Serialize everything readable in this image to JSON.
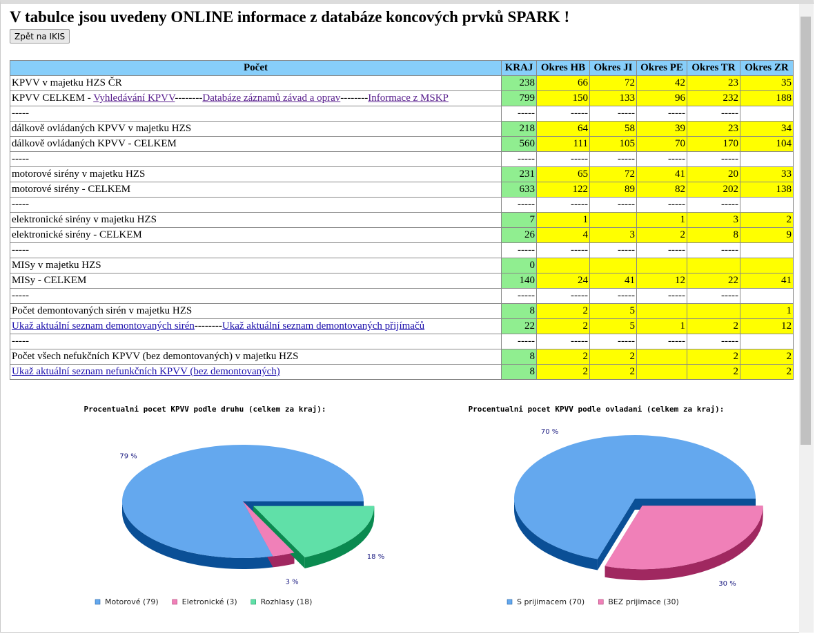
{
  "header": {
    "title": "V tabulce jsou uvedeny ONLINE informace z databáze koncových prvků SPARK !",
    "button": "Zpět na IKIS"
  },
  "table": {
    "columns": [
      "Počet",
      "KRAJ",
      "Okres HB",
      "Okres JI",
      "Okres PE",
      "Okres TR",
      "Okres ZR"
    ],
    "rows": [
      {
        "label": [
          {
            "text": "KPVV v majetku HZS ČR"
          }
        ],
        "cells": [
          238,
          66,
          72,
          42,
          23,
          35
        ]
      },
      {
        "label": [
          {
            "text": "KPVV CELKEM - "
          },
          {
            "text": "Vyhledávání KPVV",
            "link": true,
            "visited": true
          },
          {
            "text": "--------"
          },
          {
            "text": "Databáze záznamů závad a oprav",
            "link": true,
            "visited": true
          },
          {
            "text": "--------"
          },
          {
            "text": "Informace z MSKP",
            "link": true,
            "visited": true
          }
        ],
        "cells": [
          799,
          150,
          133,
          96,
          232,
          188
        ]
      },
      {
        "label": [
          {
            "text": "-----"
          }
        ],
        "cells": [
          "-----",
          "-----",
          "-----",
          "-----",
          "-----",
          null
        ]
      },
      {
        "label": [
          {
            "text": "dálkově ovládaných KPVV v majetku HZS"
          }
        ],
        "cells": [
          218,
          64,
          58,
          39,
          23,
          34
        ]
      },
      {
        "label": [
          {
            "text": "dálkově ovládaných KPVV - CELKEM"
          }
        ],
        "cells": [
          560,
          111,
          105,
          70,
          170,
          104
        ]
      },
      {
        "label": [
          {
            "text": "-----"
          }
        ],
        "cells": [
          "-----",
          "-----",
          "-----",
          "-----",
          "-----",
          null
        ]
      },
      {
        "label": [
          {
            "text": "motorové sirény v majetku HZS"
          }
        ],
        "cells": [
          231,
          65,
          72,
          41,
          20,
          33
        ]
      },
      {
        "label": [
          {
            "text": "motorové sirény - CELKEM"
          }
        ],
        "cells": [
          633,
          122,
          89,
          82,
          202,
          138
        ]
      },
      {
        "label": [
          {
            "text": "-----"
          }
        ],
        "cells": [
          "-----",
          "-----",
          "-----",
          "-----",
          "-----",
          null
        ]
      },
      {
        "label": [
          {
            "text": "elektronické sirény v majetku HZS"
          }
        ],
        "cells": [
          7,
          1,
          null,
          1,
          3,
          2
        ]
      },
      {
        "label": [
          {
            "text": "elektronické sirény - CELKEM"
          }
        ],
        "cells": [
          26,
          4,
          3,
          2,
          8,
          9
        ]
      },
      {
        "label": [
          {
            "text": "-----"
          }
        ],
        "cells": [
          "-----",
          "-----",
          "-----",
          "-----",
          "-----",
          null
        ]
      },
      {
        "label": [
          {
            "text": "MISy v majetku HZS"
          }
        ],
        "cells": [
          0,
          null,
          null,
          null,
          null,
          null
        ]
      },
      {
        "label": [
          {
            "text": "MISy - CELKEM"
          }
        ],
        "cells": [
          140,
          24,
          41,
          12,
          22,
          41
        ]
      },
      {
        "label": [
          {
            "text": "-----"
          }
        ],
        "cells": [
          "-----",
          "-----",
          "-----",
          "-----",
          "-----",
          null
        ]
      },
      {
        "label": [
          {
            "text": "Počet demontovaných sirén v majetku HZS"
          }
        ],
        "cells": [
          8,
          2,
          5,
          null,
          null,
          1
        ]
      },
      {
        "label": [
          {
            "text": "Ukaž aktuální seznam demontovaných sirén",
            "link": true
          },
          {
            "text": "--------"
          },
          {
            "text": "Ukaž aktuální seznam demontovaných přijímačů",
            "link": true
          }
        ],
        "cells": [
          22,
          2,
          5,
          1,
          2,
          12
        ]
      },
      {
        "label": [
          {
            "text": "-----"
          }
        ],
        "cells": [
          "-----",
          "-----",
          "-----",
          "-----",
          "-----",
          null
        ]
      },
      {
        "label": [
          {
            "text": "Počet všech nefukčních KPVV (bez demontovaných) v majetku HZS"
          }
        ],
        "cells": [
          8,
          2,
          2,
          null,
          2,
          2
        ]
      },
      {
        "label": [
          {
            "text": "Ukaž aktuální seznam nefunkčních KPVV (bez demontovaných)",
            "link": true
          }
        ],
        "cells": [
          8,
          2,
          2,
          null,
          2,
          2
        ]
      }
    ]
  },
  "chart_data": [
    {
      "type": "pie",
      "title": "Procentualni pocet KPVV podle druhu (celkem za kraj):",
      "categories": [
        "Motorové (79)",
        "Eletronické (3)",
        "Rozhlasy (18)"
      ],
      "values": [
        79,
        3,
        18
      ],
      "value_labels": [
        "79 %",
        "3 %",
        "18 %"
      ],
      "colors": [
        "#64a8ee",
        "#f080b8",
        "#60e0a8"
      ],
      "edge_colors": [
        "#0a4f96",
        "#a02860",
        "#0a8a50"
      ],
      "explode": [
        false,
        false,
        true
      ]
    },
    {
      "type": "pie",
      "title": "Procentualni pocet KPVV podle ovladani (celkem za kraj):",
      "categories": [
        "S prijimacem (70)",
        "BEZ prijimace (30)"
      ],
      "values": [
        70,
        30
      ],
      "value_labels": [
        "70 %",
        "30 %"
      ],
      "colors": [
        "#64a8ee",
        "#f080b8"
      ],
      "edge_colors": [
        "#0a4f96",
        "#a02860"
      ],
      "explode": [
        false,
        true
      ]
    }
  ]
}
